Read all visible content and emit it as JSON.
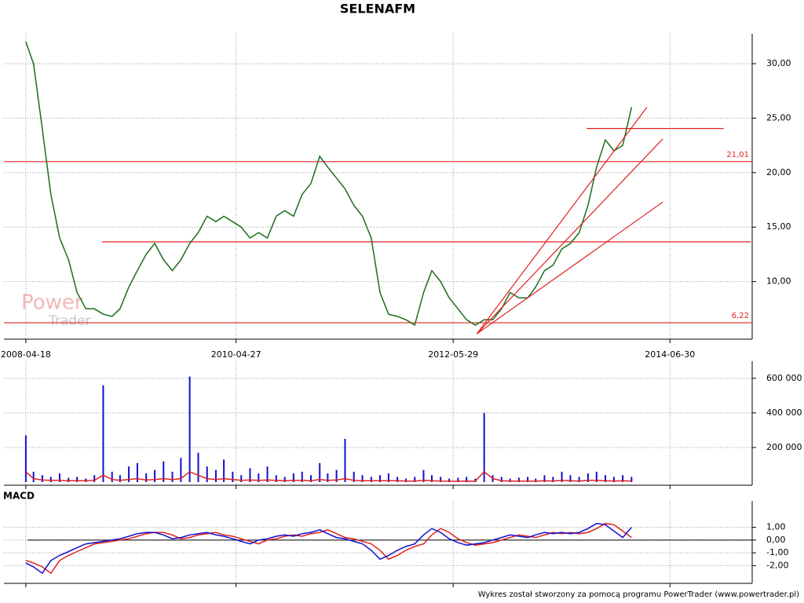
{
  "chart_data": [
    {
      "type": "line",
      "title": "SELENAFM",
      "x": [
        "2008-04-18",
        "2008-05-15",
        "2008-06-15",
        "2008-07-15",
        "2008-08-15",
        "2008-09-15",
        "2008-10-15",
        "2008-11-15",
        "2008-12-15",
        "2009-01-15",
        "2009-02-15",
        "2009-03-15",
        "2009-04-15",
        "2009-05-15",
        "2009-06-15",
        "2009-07-15",
        "2009-08-15",
        "2009-09-15",
        "2009-10-15",
        "2009-11-15",
        "2009-12-15",
        "2010-01-15",
        "2010-02-15",
        "2010-03-15",
        "2010-04-15",
        "2010-05-15",
        "2010-06-15",
        "2010-07-15",
        "2010-08-15",
        "2010-09-15",
        "2010-10-15",
        "2010-11-15",
        "2010-12-15",
        "2011-01-15",
        "2011-02-15",
        "2011-03-15",
        "2011-04-15",
        "2011-05-15",
        "2011-06-15",
        "2011-07-15",
        "2011-08-15",
        "2011-09-15",
        "2011-10-15",
        "2011-11-15",
        "2011-12-15",
        "2012-01-15",
        "2012-02-15",
        "2012-03-15",
        "2012-04-15",
        "2012-05-15",
        "2012-06-15",
        "2012-07-15",
        "2012-08-15",
        "2012-09-15",
        "2012-10-15",
        "2012-11-15",
        "2012-12-15",
        "2013-01-15",
        "2013-02-15",
        "2013-03-15",
        "2013-04-15",
        "2013-05-15",
        "2013-06-15",
        "2013-07-15",
        "2013-08-15",
        "2013-09-15",
        "2013-10-15",
        "2013-11-15",
        "2013-12-15",
        "2014-01-15",
        "2014-02-15"
      ],
      "series": [
        {
          "color": "#1b6e1b",
          "values": [
            32,
            30,
            24,
            18,
            14,
            12,
            9,
            7.5,
            7.5,
            7,
            6.8,
            7.5,
            9.5,
            11,
            12.5,
            13.5,
            12,
            11,
            12,
            13.5,
            14.5,
            16,
            15.5,
            16,
            15.5,
            15,
            14,
            14.5,
            14,
            16,
            16.5,
            16,
            18,
            19,
            21.5,
            20.5,
            19.5,
            18.5,
            17,
            16,
            14,
            9,
            7,
            6.8,
            6.5,
            6,
            9,
            11,
            10,
            8.5,
            7.5,
            6.5,
            6,
            6.5,
            6.5,
            7.5,
            9,
            8.5,
            8.5,
            9.5,
            11,
            11.5,
            13,
            13.5,
            14.5,
            17,
            20.5,
            23,
            22,
            22.5,
            26
          ]
        }
      ],
      "xlim": [
        "2008-02-01",
        "2015-04-15"
      ],
      "xticks": [
        "2008-04-18",
        "2010-04-27",
        "2012-05-29",
        "2014-06-30"
      ],
      "ylim": [
        5,
        32.6
      ],
      "yticks": [
        {
          "value": 10,
          "label": "10,00"
        },
        {
          "value": 15,
          "label": "15,00"
        },
        {
          "value": 20,
          "label": "20,00"
        },
        {
          "value": 25,
          "label": "25,00"
        },
        {
          "value": 30,
          "label": "30,00"
        }
      ],
      "grid": true,
      "hlines": [
        {
          "value": 21.01,
          "label": "21,01",
          "color": "#e02020"
        },
        {
          "value": 6.22,
          "label": "6,22",
          "color": "#e02020"
        },
        {
          "value": 13.65,
          "color": "#e02020",
          "from": "2009-01-10",
          "to": "2015-04-10"
        },
        {
          "value": 24.05,
          "color": "#e02020",
          "from": "2013-09-10",
          "to": "2015-01-05"
        }
      ],
      "trendlines": [
        {
          "x": [
            "2012-08-20",
            "2014-04-10"
          ],
          "y": [
            5.2,
            26
          ],
          "color": "#e02020"
        },
        {
          "x": [
            "2012-08-20",
            "2014-06-05"
          ],
          "y": [
            5.2,
            23.1
          ],
          "color": "#e02020"
        },
        {
          "x": [
            "2012-08-20",
            "2014-06-05"
          ],
          "y": [
            5.2,
            17.3
          ],
          "color": "#e02020"
        }
      ],
      "watermark": [
        "Power",
        "Trader"
      ]
    },
    {
      "type": "bar",
      "x": [
        "2008-04-18",
        "2008-05-15",
        "2008-06-15",
        "2008-07-15",
        "2008-08-15",
        "2008-09-15",
        "2008-10-15",
        "2008-11-15",
        "2008-12-15",
        "2009-01-15",
        "2009-02-15",
        "2009-03-15",
        "2009-04-15",
        "2009-05-15",
        "2009-06-15",
        "2009-07-15",
        "2009-08-15",
        "2009-09-15",
        "2009-10-15",
        "2009-11-15",
        "2009-12-15",
        "2010-01-15",
        "2010-02-15",
        "2010-03-15",
        "2010-04-15",
        "2010-05-15",
        "2010-06-15",
        "2010-07-15",
        "2010-08-15",
        "2010-09-15",
        "2010-10-15",
        "2010-11-15",
        "2010-12-15",
        "2011-01-15",
        "2011-02-15",
        "2011-03-15",
        "2011-04-15",
        "2011-05-15",
        "2011-06-15",
        "2011-07-15",
        "2011-08-15",
        "2011-09-15",
        "2011-10-15",
        "2011-11-15",
        "2011-12-15",
        "2012-01-15",
        "2012-02-15",
        "2012-03-15",
        "2012-04-15",
        "2012-05-15",
        "2012-06-15",
        "2012-07-15",
        "2012-08-15",
        "2012-09-15",
        "2012-10-15",
        "2012-11-15",
        "2012-12-15",
        "2013-01-15",
        "2013-02-15",
        "2013-03-15",
        "2013-04-15",
        "2013-05-15",
        "2013-06-15",
        "2013-07-15",
        "2013-08-15",
        "2013-09-15",
        "2013-10-15",
        "2013-11-15",
        "2013-12-15",
        "2014-01-15",
        "2014-02-15"
      ],
      "series": [
        {
          "type": "bar",
          "color": "#1010d0",
          "values": [
            270000,
            60000,
            40000,
            30000,
            50000,
            25000,
            30000,
            20000,
            40000,
            560000,
            60000,
            40000,
            90000,
            110000,
            50000,
            70000,
            120000,
            60000,
            140000,
            610000,
            170000,
            90000,
            70000,
            130000,
            60000,
            40000,
            80000,
            50000,
            90000,
            40000,
            30000,
            50000,
            60000,
            40000,
            110000,
            50000,
            70000,
            250000,
            60000,
            40000,
            30000,
            40000,
            50000,
            30000,
            20000,
            30000,
            70000,
            40000,
            30000,
            20000,
            25000,
            30000,
            20000,
            400000,
            40000,
            30000,
            20000,
            25000,
            30000,
            20000,
            40000,
            30000,
            60000,
            40000,
            30000,
            50000,
            60000,
            40000,
            30000,
            40000,
            30000
          ]
        },
        {
          "type": "line",
          "color": "#e02020",
          "values": [
            60000,
            20000,
            12000,
            10000,
            10000,
            8000,
            8000,
            8000,
            10000,
            40000,
            15000,
            10000,
            15000,
            20000,
            12000,
            15000,
            20000,
            15000,
            20000,
            60000,
            40000,
            20000,
            15000,
            20000,
            15000,
            10000,
            12000,
            10000,
            12000,
            10000,
            8000,
            10000,
            10000,
            8000,
            15000,
            10000,
            12000,
            20000,
            10000,
            8000,
            8000,
            8000,
            8000,
            8000,
            6000,
            6000,
            10000,
            8000,
            6000,
            5000,
            5000,
            6000,
            5000,
            60000,
            20000,
            8000,
            6000,
            6000,
            6000,
            5000,
            8000,
            6000,
            10000,
            8000,
            6000,
            10000,
            10000,
            8000,
            6000,
            8000,
            6000
          ]
        }
      ],
      "xlim": [
        "2008-02-01",
        "2015-04-15"
      ],
      "xticks": [
        "2008-04-18",
        "2010-04-27",
        "2012-05-29",
        "2014-06-30"
      ],
      "ylim": [
        0,
        690000
      ],
      "yticks": [
        {
          "value": 200000,
          "label": "200 000"
        },
        {
          "value": 400000,
          "label": "400 000"
        },
        {
          "value": 600000,
          "label": "600 000"
        }
      ],
      "grid": true
    },
    {
      "type": "line",
      "label": "MACD",
      "x": [
        "2008-04-18",
        "2008-05-15",
        "2008-06-15",
        "2008-07-15",
        "2008-08-15",
        "2008-09-15",
        "2008-10-15",
        "2008-11-15",
        "2008-12-15",
        "2009-01-15",
        "2009-02-15",
        "2009-03-15",
        "2009-04-15",
        "2009-05-15",
        "2009-06-15",
        "2009-07-15",
        "2009-08-15",
        "2009-09-15",
        "2009-10-15",
        "2009-11-15",
        "2009-12-15",
        "2010-01-15",
        "2010-02-15",
        "2010-03-15",
        "2010-04-15",
        "2010-05-15",
        "2010-06-15",
        "2010-07-15",
        "2010-08-15",
        "2010-09-15",
        "2010-10-15",
        "2010-11-15",
        "2010-12-15",
        "2011-01-15",
        "2011-02-15",
        "2011-03-15",
        "2011-04-15",
        "2011-05-15",
        "2011-06-15",
        "2011-07-15",
        "2011-08-15",
        "2011-09-15",
        "2011-10-15",
        "2011-11-15",
        "2011-12-15",
        "2012-01-15",
        "2012-02-15",
        "2012-03-15",
        "2012-04-15",
        "2012-05-15",
        "2012-06-15",
        "2012-07-15",
        "2012-08-15",
        "2012-09-15",
        "2012-10-15",
        "2012-11-15",
        "2012-12-15",
        "2013-01-15",
        "2013-02-15",
        "2013-03-15",
        "2013-04-15",
        "2013-05-15",
        "2013-06-15",
        "2013-07-15",
        "2013-08-15",
        "2013-09-15",
        "2013-10-15",
        "2013-11-15",
        "2013-12-15",
        "2014-01-15",
        "2014-02-15"
      ],
      "series": [
        {
          "type": "line",
          "color": "#e02020",
          "values": [
            -1.6,
            -1.8,
            -2.1,
            -2.6,
            -1.6,
            -1.2,
            -0.9,
            -0.6,
            -0.3,
            -0.2,
            -0.1,
            0.0,
            0.1,
            0.3,
            0.5,
            0.6,
            0.6,
            0.4,
            0.1,
            0.2,
            0.4,
            0.5,
            0.6,
            0.4,
            0.3,
            0.1,
            -0.1,
            -0.3,
            0.0,
            0.1,
            0.3,
            0.4,
            0.3,
            0.5,
            0.6,
            0.8,
            0.5,
            0.2,
            0.1,
            -0.1,
            -0.3,
            -0.8,
            -1.5,
            -1.2,
            -0.8,
            -0.5,
            -0.3,
            0.4,
            0.9,
            0.6,
            0.1,
            -0.2,
            -0.4,
            -0.3,
            -0.2,
            0.0,
            0.2,
            0.4,
            0.3,
            0.2,
            0.4,
            0.6,
            0.5,
            0.6,
            0.5,
            0.6,
            0.9,
            1.3,
            1.2,
            0.7,
            0.2
          ]
        },
        {
          "type": "line",
          "color": "#1010d0",
          "values": [
            -1.8,
            -2.1,
            -2.6,
            -1.6,
            -1.2,
            -0.9,
            -0.6,
            -0.3,
            -0.2,
            -0.1,
            0.0,
            0.1,
            0.3,
            0.5,
            0.6,
            0.6,
            0.4,
            0.1,
            0.2,
            0.4,
            0.5,
            0.6,
            0.4,
            0.3,
            0.1,
            -0.1,
            -0.3,
            0.0,
            0.1,
            0.3,
            0.4,
            0.3,
            0.5,
            0.6,
            0.8,
            0.5,
            0.2,
            0.1,
            -0.1,
            -0.3,
            -0.8,
            -1.5,
            -1.2,
            -0.8,
            -0.5,
            -0.3,
            0.4,
            0.9,
            0.6,
            0.1,
            -0.2,
            -0.4,
            -0.3,
            -0.2,
            0.0,
            0.2,
            0.4,
            0.3,
            0.2,
            0.4,
            0.6,
            0.5,
            0.6,
            0.5,
            0.6,
            0.9,
            1.3,
            1.2,
            0.7,
            0.2,
            1.0
          ]
        }
      ],
      "xlim": [
        "2008-02-01",
        "2015-04-15"
      ],
      "xticks": [
        "2008-04-18",
        "2010-04-27",
        "2012-05-29",
        "2014-06-30"
      ],
      "ylim": [
        -3.39,
        2.94
      ],
      "yticks": [
        {
          "value": -2,
          "label": "-2,00"
        },
        {
          "value": -1,
          "label": "-1,00"
        },
        {
          "value": 0,
          "label": "0,00"
        },
        {
          "value": 1,
          "label": "1,00"
        }
      ],
      "grid": true
    }
  ],
  "footer": "Wykres został stworzony za pomocą programu PowerTrader (www.powertrader.pl)"
}
